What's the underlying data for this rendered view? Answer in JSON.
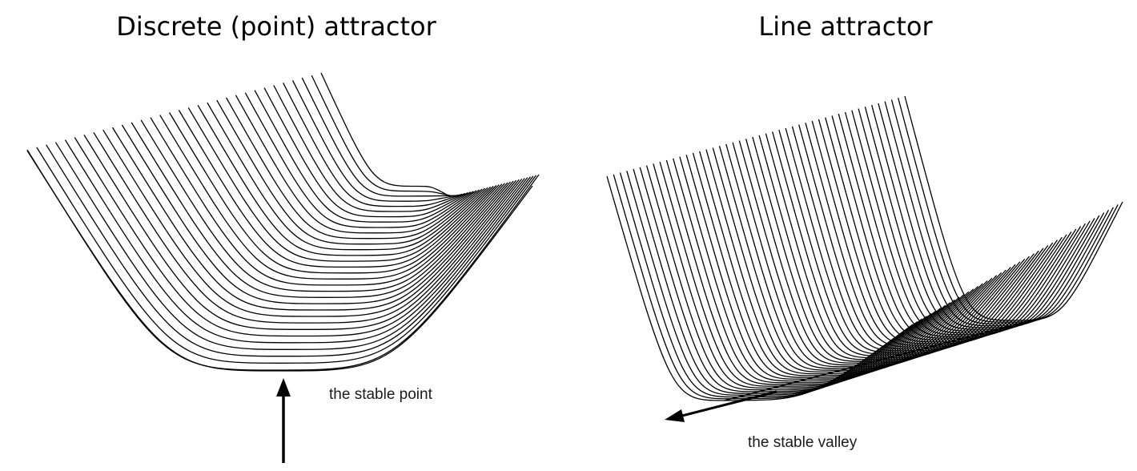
{
  "left_panel": {
    "title": "Discrete (point) attractor",
    "annotation": "the stable point",
    "line_color": "#000000"
  },
  "right_panel": {
    "title": "Line attractor",
    "annotation": "the stable valley",
    "line_color": "#000000"
  }
}
